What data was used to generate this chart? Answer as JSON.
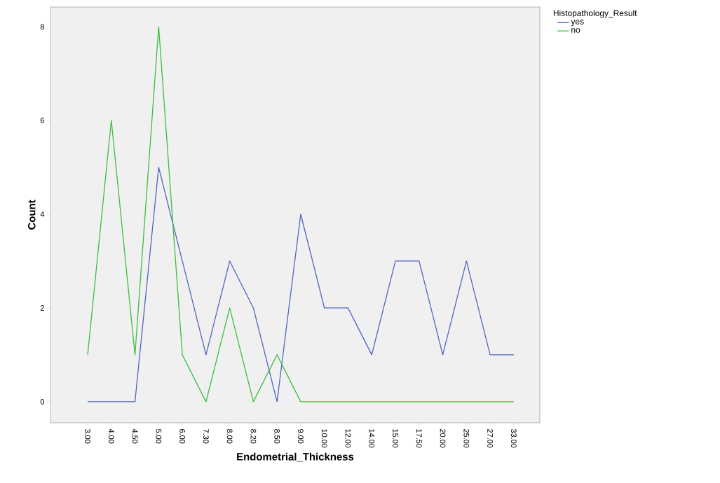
{
  "chart_data": {
    "type": "line",
    "xlabel": "Endometrial_Thickness",
    "ylabel": "Count",
    "legend_title": "Histopathology_Result",
    "categories": [
      "3.00",
      "4.00",
      "4.50",
      "5.00",
      "6.00",
      "7.30",
      "8.00",
      "8.20",
      "8.50",
      "9.00",
      "10.00",
      "12.00",
      "14.00",
      "15.00",
      "17.50",
      "20.00",
      "25.00",
      "27.00",
      "33.00"
    ],
    "series": [
      {
        "name": "yes",
        "color": "#5064c0",
        "values": [
          0,
          0,
          0,
          5,
          3,
          1,
          3,
          2,
          0,
          4,
          2,
          2,
          1,
          3,
          3,
          1,
          3,
          1,
          1
        ]
      },
      {
        "name": "no",
        "color": "#3cbf3c",
        "values": [
          1,
          6,
          1,
          8,
          1,
          0,
          2,
          0,
          1,
          0,
          0,
          0,
          0,
          0,
          0,
          0,
          0,
          0,
          0
        ]
      }
    ],
    "ylim": [
      -0.45,
      8.42
    ],
    "yticks": [
      0,
      2,
      4,
      6,
      8
    ],
    "grid": false,
    "legend": "top right",
    "marker": "none",
    "line_style": "solid"
  }
}
